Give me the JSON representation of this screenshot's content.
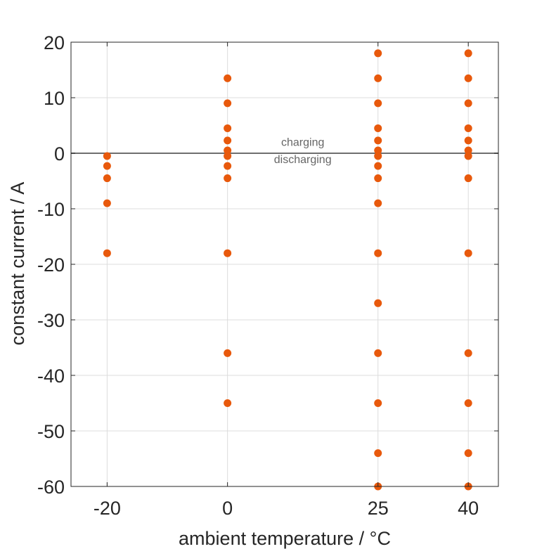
{
  "chart_data": {
    "type": "scatter",
    "xlabel": "ambient temperature / °C",
    "ylabel": "constant current / A",
    "xlim": [
      -26,
      45
    ],
    "ylim": [
      -60,
      20
    ],
    "xticks": [
      -20,
      0,
      25,
      40
    ],
    "yticks": [
      20,
      10,
      0,
      -10,
      -20,
      -30,
      -40,
      -50,
      -60
    ],
    "grid": true,
    "marker_color": "#e8590c",
    "reference_line": {
      "y": 0,
      "color": "#6e6e6e"
    },
    "annotations": [
      {
        "text": "charging",
        "x": 12.5,
        "y": 1.3
      },
      {
        "text": "discharging",
        "x": 12.5,
        "y": -1.8
      }
    ],
    "points": [
      {
        "x": -20,
        "y": -0.5
      },
      {
        "x": -20,
        "y": -2.3
      },
      {
        "x": -20,
        "y": -4.5
      },
      {
        "x": -20,
        "y": -9
      },
      {
        "x": -20,
        "y": -18
      },
      {
        "x": 0,
        "y": 13.5
      },
      {
        "x": 0,
        "y": 9
      },
      {
        "x": 0,
        "y": 4.5
      },
      {
        "x": 0,
        "y": 2.3
      },
      {
        "x": 0,
        "y": 0.5
      },
      {
        "x": 0,
        "y": -0.5
      },
      {
        "x": 0,
        "y": -2.3
      },
      {
        "x": 0,
        "y": -4.5
      },
      {
        "x": 0,
        "y": -18
      },
      {
        "x": 0,
        "y": -36
      },
      {
        "x": 0,
        "y": -45
      },
      {
        "x": 25,
        "y": 18
      },
      {
        "x": 25,
        "y": 13.5
      },
      {
        "x": 25,
        "y": 9
      },
      {
        "x": 25,
        "y": 4.5
      },
      {
        "x": 25,
        "y": 2.3
      },
      {
        "x": 25,
        "y": 0.5
      },
      {
        "x": 25,
        "y": -0.5
      },
      {
        "x": 25,
        "y": -2.3
      },
      {
        "x": 25,
        "y": -4.5
      },
      {
        "x": 25,
        "y": -9
      },
      {
        "x": 25,
        "y": -18
      },
      {
        "x": 25,
        "y": -27
      },
      {
        "x": 25,
        "y": -36
      },
      {
        "x": 25,
        "y": -45
      },
      {
        "x": 25,
        "y": -54
      },
      {
        "x": 25,
        "y": -60
      },
      {
        "x": 40,
        "y": 18
      },
      {
        "x": 40,
        "y": 13.5
      },
      {
        "x": 40,
        "y": 9
      },
      {
        "x": 40,
        "y": 4.5
      },
      {
        "x": 40,
        "y": 2.3
      },
      {
        "x": 40,
        "y": 0.5
      },
      {
        "x": 40,
        "y": -0.5
      },
      {
        "x": 40,
        "y": -4.5
      },
      {
        "x": 40,
        "y": -18
      },
      {
        "x": 40,
        "y": -36
      },
      {
        "x": 40,
        "y": -45
      },
      {
        "x": 40,
        "y": -54
      },
      {
        "x": 40,
        "y": -60
      }
    ]
  }
}
